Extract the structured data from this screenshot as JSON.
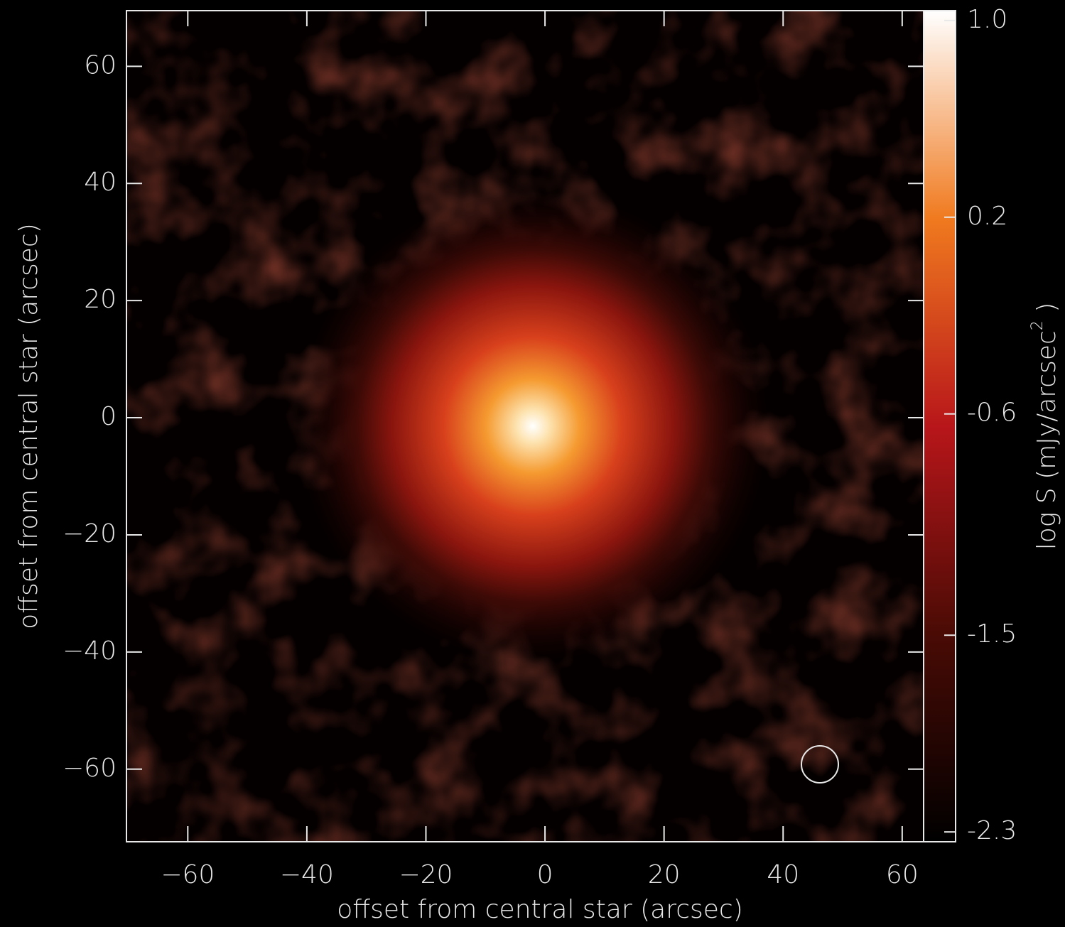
{
  "chart_data": {
    "type": "image",
    "xlabel": "offset from central star (arcsec)",
    "ylabel": "offset from central star (arcsec)",
    "xlim": [
      -70.3,
      63.6
    ],
    "ylim": [
      -72.4,
      69.5
    ],
    "xticks": [
      {
        "value": -60,
        "label": "−60"
      },
      {
        "value": -40,
        "label": "−40"
      },
      {
        "value": -20,
        "label": "−20"
      },
      0,
      20,
      40,
      60
    ],
    "yticks": [
      {
        "value": -60,
        "label": "−60"
      },
      {
        "value": -40,
        "label": "−40"
      },
      {
        "value": -20,
        "label": "−20"
      },
      0,
      20,
      40,
      60
    ],
    "colorbar": {
      "label": "log S (mJy/arcsec",
      "label_sup": "2",
      "label_end": " )",
      "clim": [
        -2.34,
        1.04
      ],
      "ticks": [
        {
          "value": 1,
          "label": "1.0"
        },
        0.2,
        -0.6,
        -1.5,
        -2.3
      ],
      "colormap": [
        "#000000",
        "#4a0b05",
        "#b8161a",
        "#f07a1f",
        "#ffffff"
      ]
    }
  }
}
